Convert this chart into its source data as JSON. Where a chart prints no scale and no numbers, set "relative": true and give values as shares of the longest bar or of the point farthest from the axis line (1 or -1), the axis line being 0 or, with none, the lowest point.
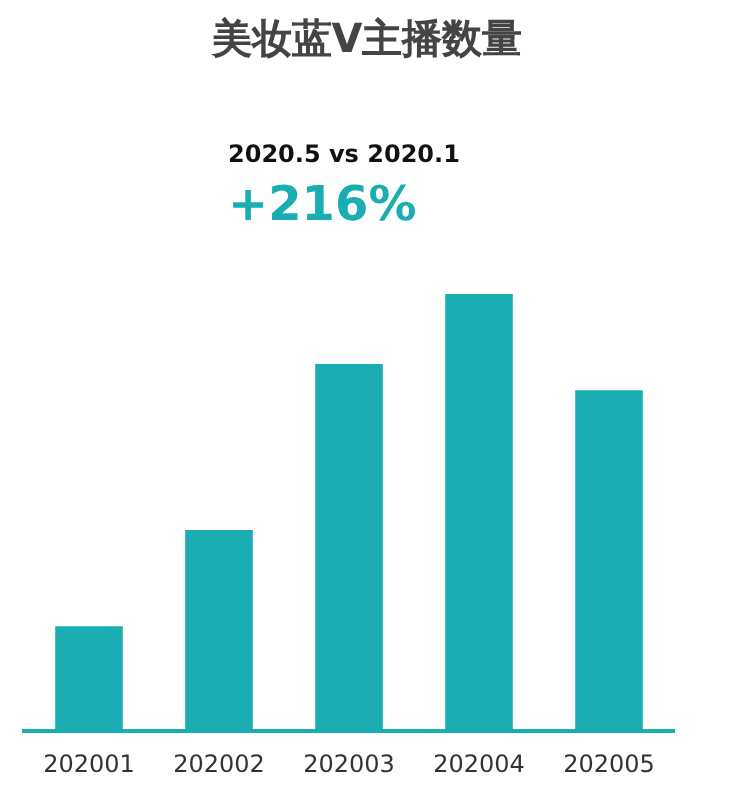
{
  "chart_data": {
    "type": "bar",
    "title": "美妆蓝V主播数量",
    "annotations": [
      "2020.5 vs 2020.1",
      "+216%"
    ],
    "categories": [
      "202001",
      "202002",
      "202003",
      "202004",
      "202005"
    ],
    "values": [
      0.24,
      0.46,
      0.84,
      1,
      0.78
    ],
    "color": "#1aaeb3",
    "relative": true,
    "grid": false,
    "legend": false
  }
}
